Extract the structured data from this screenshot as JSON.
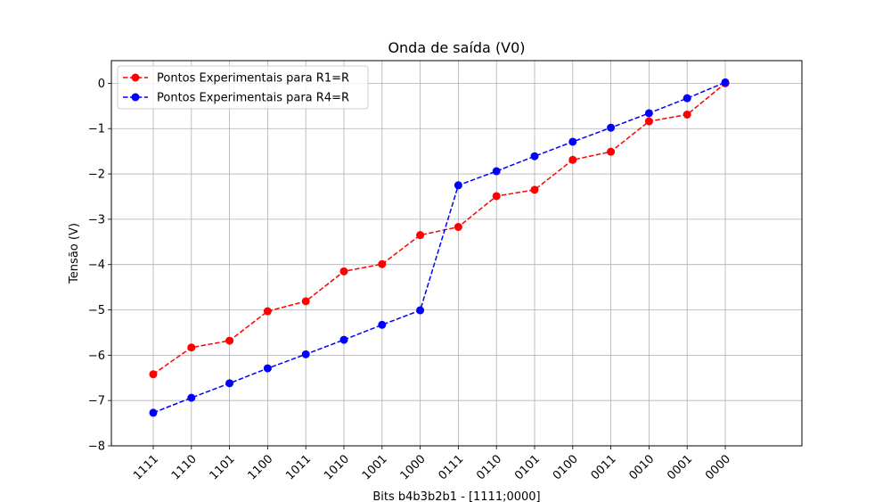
{
  "chart_data": {
    "type": "line",
    "title": "Onda de saída (V0)",
    "xlabel": "Bits b4b3b2b1 - [1111;0000]",
    "ylabel": "Tensão (V)",
    "categories": [
      "1111",
      "1110",
      "1101",
      "1100",
      "1011",
      "1010",
      "1001",
      "1000",
      "0111",
      "0110",
      "0101",
      "0100",
      "0011",
      "0010",
      "0001",
      "0000"
    ],
    "ylim": [
      -8,
      0.5
    ],
    "yticks": [
      0,
      -1,
      -2,
      -3,
      -4,
      -5,
      -6,
      -7,
      -8
    ],
    "ytick_labels": [
      "0",
      "−1",
      "−2",
      "−3",
      "−4",
      "−5",
      "−6",
      "−7",
      "−8"
    ],
    "grid": true,
    "legend_position": "upper-left",
    "series": [
      {
        "name": "Pontos Experimentais para R1=R",
        "color": "#ff0000",
        "linestyle": "dashed",
        "marker": "circle",
        "values": [
          -6.42,
          -5.83,
          -5.68,
          -5.03,
          -4.81,
          -4.15,
          -3.99,
          -3.35,
          -3.17,
          -2.49,
          -2.35,
          -1.69,
          -1.51,
          -0.84,
          -0.69,
          0.0
        ]
      },
      {
        "name": "Pontos Experimentais para R4=R",
        "color": "#0000ff",
        "linestyle": "dashed",
        "marker": "circle",
        "values": [
          -7.27,
          -6.94,
          -6.62,
          -6.29,
          -5.98,
          -5.66,
          -5.33,
          -5.01,
          -2.25,
          -1.94,
          -1.61,
          -1.29,
          -0.98,
          -0.66,
          -0.33,
          0.02
        ]
      }
    ]
  }
}
